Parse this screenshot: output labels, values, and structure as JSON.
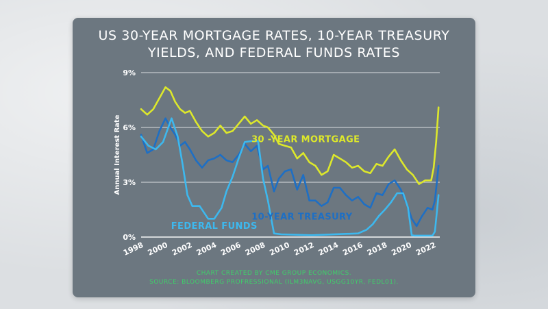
{
  "title_line1": "US 30-YEAR MORTGAGE RATES, 10-YEAR TREASURY",
  "title_line2": "YIELDS, AND FEDERAL FUNDS RATES",
  "footer_line1": "CHART CREATED BY CME GROUP ECONOMICS.",
  "footer_line2": "SOURCE: BLOOMBERG PROFRESSIONAL (ILM3NAVG, USGG10YR, FEDL01).",
  "chart_data": {
    "type": "line",
    "title": "US 30-YEAR MORTGAGE RATES, 10-YEAR TREASURY YIELDS, AND FEDERAL FUNDS RATES",
    "xlabel": "",
    "ylabel": "Annual Interest Rate",
    "xlim": [
      1998,
      2022.5
    ],
    "ylim": [
      0,
      9
    ],
    "x_ticks": [
      1998,
      2000,
      2002,
      2004,
      2006,
      2008,
      2010,
      2012,
      2014,
      2016,
      2018,
      2020,
      2022
    ],
    "x_tick_labels": [
      "1998",
      "2000",
      "2002",
      "2004",
      "2006",
      "2008",
      "2010",
      "2012",
      "2014",
      "2016",
      "2018",
      "2020",
      "2022"
    ],
    "y_ticks": [
      0,
      3,
      6,
      9
    ],
    "y_tick_labels": [
      "0%",
      "3%",
      "6%",
      "9%"
    ],
    "grid": true,
    "series": [
      {
        "name": "30 -YEAR MORTGAGE",
        "color": "#dde82b",
        "x": [
          1998.0,
          1998.5,
          1999.0,
          1999.5,
          2000.0,
          2000.4,
          2000.8,
          2001.2,
          2001.6,
          2002.0,
          2002.5,
          2003.0,
          2003.5,
          2004.0,
          2004.5,
          2005.0,
          2005.5,
          2006.0,
          2006.5,
          2007.0,
          2007.5,
          2008.0,
          2008.4,
          2008.9,
          2009.3,
          2009.8,
          2010.3,
          2010.8,
          2011.3,
          2011.8,
          2012.3,
          2012.8,
          2013.3,
          2013.8,
          2014.3,
          2014.8,
          2015.3,
          2015.8,
          2016.3,
          2016.8,
          2017.3,
          2017.8,
          2018.3,
          2018.8,
          2019.3,
          2019.8,
          2020.3,
          2020.8,
          2021.3,
          2021.8,
          2022.0,
          2022.2,
          2022.4
        ],
        "values": [
          7.0,
          6.7,
          7.0,
          7.6,
          8.2,
          8.0,
          7.4,
          7.0,
          6.8,
          6.9,
          6.3,
          5.8,
          5.5,
          5.7,
          6.1,
          5.7,
          5.8,
          6.2,
          6.6,
          6.2,
          6.4,
          6.1,
          6.0,
          5.6,
          5.1,
          5.0,
          4.9,
          4.3,
          4.6,
          4.1,
          3.9,
          3.4,
          3.6,
          4.5,
          4.3,
          4.1,
          3.8,
          3.9,
          3.6,
          3.5,
          4.0,
          3.9,
          4.4,
          4.8,
          4.2,
          3.7,
          3.4,
          2.9,
          3.1,
          3.1,
          3.8,
          5.2,
          7.1
        ]
      },
      {
        "name": "10-YEAR TREASURY",
        "color": "#1e6fc4",
        "x": [
          1998.0,
          1998.5,
          1999.0,
          1999.5,
          2000.0,
          2000.4,
          2000.8,
          2001.2,
          2001.6,
          2002.0,
          2002.5,
          2003.0,
          2003.5,
          2004.0,
          2004.5,
          2005.0,
          2005.5,
          2006.0,
          2006.5,
          2007.0,
          2007.5,
          2008.0,
          2008.4,
          2008.9,
          2009.3,
          2009.8,
          2010.3,
          2010.8,
          2011.3,
          2011.8,
          2012.3,
          2012.8,
          2013.3,
          2013.8,
          2014.3,
          2014.8,
          2015.3,
          2015.8,
          2016.3,
          2016.8,
          2017.3,
          2017.8,
          2018.3,
          2018.8,
          2019.3,
          2019.8,
          2020.2,
          2020.6,
          2021.0,
          2021.5,
          2021.9,
          2022.1,
          2022.4
        ],
        "values": [
          5.6,
          4.6,
          4.8,
          5.8,
          6.5,
          6.0,
          5.6,
          5.0,
          5.2,
          4.8,
          4.2,
          3.8,
          4.2,
          4.3,
          4.5,
          4.2,
          4.1,
          4.5,
          5.1,
          4.7,
          5.0,
          3.7,
          3.9,
          2.5,
          3.2,
          3.6,
          3.7,
          2.6,
          3.4,
          2.0,
          2.0,
          1.7,
          1.9,
          2.7,
          2.7,
          2.3,
          2.0,
          2.2,
          1.8,
          1.6,
          2.4,
          2.3,
          2.9,
          3.1,
          2.6,
          1.8,
          1.0,
          0.6,
          1.1,
          1.6,
          1.5,
          2.0,
          3.9
        ]
      },
      {
        "name": "FEDERAL FUNDS",
        "color": "#3db8ee",
        "x": [
          1998.0,
          1998.6,
          1999.2,
          1999.8,
          2000.5,
          2001.0,
          2001.4,
          2001.8,
          2002.2,
          2002.8,
          2003.5,
          2004.0,
          2004.6,
          2005.0,
          2005.5,
          2006.0,
          2006.5,
          2007.0,
          2007.6,
          2008.0,
          2008.4,
          2008.9,
          2009.5,
          2012.0,
          2015.8,
          2016.5,
          2017.0,
          2017.5,
          2018.0,
          2018.5,
          2019.0,
          2019.5,
          2019.9,
          2020.2,
          2020.4,
          2021.0,
          2021.9,
          2022.1,
          2022.4
        ],
        "values": [
          5.5,
          5.0,
          4.8,
          5.2,
          6.5,
          5.5,
          4.0,
          2.3,
          1.7,
          1.7,
          1.0,
          1.0,
          1.6,
          2.5,
          3.3,
          4.3,
          5.2,
          5.25,
          5.25,
          3.2,
          2.0,
          0.2,
          0.15,
          0.1,
          0.2,
          0.4,
          0.7,
          1.15,
          1.5,
          1.9,
          2.4,
          2.4,
          1.6,
          0.1,
          0.08,
          0.08,
          0.08,
          0.3,
          2.3
        ]
      }
    ],
    "annotations": [
      {
        "text": "30 -YEAR MORTGAGE",
        "series": "30 -YEAR MORTGAGE",
        "x": 2011.5,
        "y": 5.2
      },
      {
        "text": "10-YEAR TREASURY",
        "series": "10-YEAR TREASURY",
        "x": 2011.2,
        "y": 0.95
      },
      {
        "text": "FEDERAL FUNDS",
        "series": "FEDERAL FUNDS",
        "x": 2004.0,
        "y": 0.45
      }
    ]
  }
}
